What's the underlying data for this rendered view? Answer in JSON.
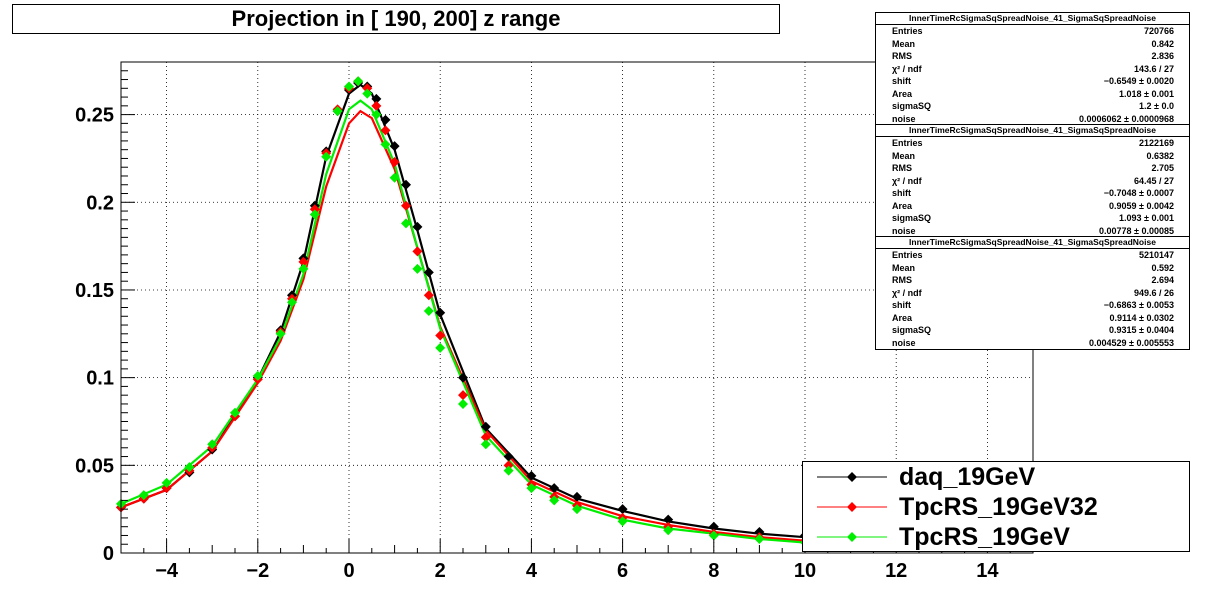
{
  "chart_data": {
    "type": "scatter",
    "title": "Projection in [ 190, 200] z range",
    "xlabel": "",
    "ylabel": "",
    "xlim": [
      -5,
      15
    ],
    "ylim": [
      0,
      0.28
    ],
    "x_ticks": [
      -4,
      -2,
      0,
      2,
      4,
      6,
      8,
      10,
      12,
      14
    ],
    "y_ticks": [
      0,
      0.05,
      0.1,
      0.15,
      0.2,
      0.25
    ],
    "x_tick_labels": [
      "−4",
      "−2",
      "0",
      "2",
      "4",
      "6",
      "8",
      "10",
      "12",
      "14"
    ],
    "y_tick_labels": [
      "0",
      "0.05",
      "0.1",
      "0.15",
      "0.2",
      "0.25"
    ],
    "grid": true,
    "legend_position": "bottom-right",
    "series": [
      {
        "name": "daq_19GeV",
        "color": "#000000",
        "marker": "diamond",
        "x": [
          -5,
          -4.5,
          -4,
          -3.5,
          -3,
          -2.5,
          -2,
          -1.5,
          -1.25,
          -1,
          -0.75,
          -0.5,
          -0.25,
          0,
          0.2,
          0.4,
          0.6,
          0.8,
          1,
          1.25,
          1.5,
          1.75,
          2,
          2.5,
          3,
          3.5,
          4,
          4.5,
          5,
          6,
          7,
          8,
          9,
          10
        ],
        "y": [
          0.026,
          0.031,
          0.037,
          0.046,
          0.059,
          0.078,
          0.1,
          0.127,
          0.147,
          0.168,
          0.198,
          0.229,
          0.252,
          0.264,
          0.268,
          0.266,
          0.259,
          0.247,
          0.232,
          0.21,
          0.186,
          0.16,
          0.137,
          0.1,
          0.072,
          0.055,
          0.044,
          0.037,
          0.032,
          0.025,
          0.019,
          0.015,
          0.012,
          0.01
        ]
      },
      {
        "name": "TpcRS_19GeV32",
        "color": "#ff0000",
        "marker": "diamond",
        "x": [
          -5,
          -4.5,
          -4,
          -3.5,
          -3,
          -2.5,
          -2,
          -1.5,
          -1.25,
          -1,
          -0.75,
          -0.5,
          -0.25,
          0,
          0.2,
          0.4,
          0.6,
          0.8,
          1,
          1.25,
          1.5,
          1.75,
          2,
          2.5,
          3,
          3.5,
          4,
          4.5,
          5,
          6,
          7,
          8,
          9,
          10
        ],
        "y": [
          0.026,
          0.031,
          0.037,
          0.047,
          0.06,
          0.078,
          0.099,
          0.126,
          0.145,
          0.166,
          0.196,
          0.228,
          0.253,
          0.265,
          0.269,
          0.265,
          0.255,
          0.241,
          0.223,
          0.198,
          0.172,
          0.147,
          0.124,
          0.09,
          0.066,
          0.05,
          0.039,
          0.032,
          0.027,
          0.02,
          0.015,
          0.011,
          0.009,
          0.007
        ]
      },
      {
        "name": "TpcRS_19GeV",
        "color": "#00ee00",
        "marker": "diamond",
        "x": [
          -5,
          -4.5,
          -4,
          -3.5,
          -3,
          -2.5,
          -2,
          -1.5,
          -1.25,
          -1,
          -0.75,
          -0.5,
          -0.25,
          0,
          0.2,
          0.4,
          0.6,
          0.8,
          1,
          1.25,
          1.5,
          1.75,
          2,
          2.5,
          3,
          3.5,
          4,
          4.5,
          5,
          6,
          7,
          8,
          9,
          10
        ],
        "y": [
          0.028,
          0.033,
          0.04,
          0.049,
          0.062,
          0.08,
          0.101,
          0.125,
          0.143,
          0.162,
          0.193,
          0.226,
          0.252,
          0.266,
          0.269,
          0.262,
          0.25,
          0.233,
          0.214,
          0.188,
          0.162,
          0.138,
          0.117,
          0.085,
          0.062,
          0.047,
          0.037,
          0.03,
          0.025,
          0.018,
          0.013,
          0.01,
          0.008,
          0.006
        ]
      }
    ],
    "fits": [
      {
        "name": "daq_19GeV",
        "color": "#000000",
        "x": [
          -5,
          -4,
          -3,
          -2,
          -1.5,
          -1,
          -0.5,
          0,
          0.25,
          0.5,
          1,
          1.5,
          2,
          3,
          4,
          5,
          6,
          7,
          8,
          9,
          10
        ],
        "y": [
          0.026,
          0.036,
          0.058,
          0.099,
          0.126,
          0.166,
          0.226,
          0.262,
          0.267,
          0.262,
          0.23,
          0.184,
          0.136,
          0.071,
          0.043,
          0.031,
          0.024,
          0.018,
          0.014,
          0.011,
          0.009
        ]
      },
      {
        "name": "TpcRS_19GeV32",
        "color": "#ff0000",
        "x": [
          -5,
          -4,
          -3,
          -2,
          -1.5,
          -1,
          -0.5,
          0,
          0.25,
          0.5,
          1,
          1.5,
          2,
          3,
          4,
          5,
          6,
          7,
          8,
          9,
          10
        ],
        "y": [
          0.026,
          0.036,
          0.058,
          0.097,
          0.121,
          0.156,
          0.209,
          0.245,
          0.252,
          0.248,
          0.219,
          0.174,
          0.129,
          0.07,
          0.041,
          0.029,
          0.021,
          0.016,
          0.012,
          0.009,
          0.007
        ]
      },
      {
        "name": "TpcRS_19GeV",
        "color": "#00ee00",
        "x": [
          -5,
          -4,
          -3,
          -2,
          -1.5,
          -1,
          -0.5,
          0,
          0.25,
          0.5,
          1,
          1.5,
          2,
          3,
          4,
          5,
          6,
          7,
          8,
          9,
          10
        ],
        "y": [
          0.028,
          0.039,
          0.061,
          0.099,
          0.123,
          0.159,
          0.216,
          0.253,
          0.258,
          0.253,
          0.222,
          0.174,
          0.128,
          0.067,
          0.039,
          0.027,
          0.019,
          0.014,
          0.011,
          0.008,
          0.006
        ]
      }
    ],
    "stat_boxes": [
      {
        "header": "InnerTimeRcSigmaSqSpreadNoise_41_SigmaSqSpreadNoise",
        "rows": [
          {
            "k": "Entries",
            "v": "720766"
          },
          {
            "k": "Mean",
            "v": "0.842"
          },
          {
            "k": "RMS",
            "v": "2.836"
          },
          {
            "k": "χ² / ndf",
            "v": "143.6 / 27"
          },
          {
            "k": "shift",
            "v": "−0.6549 ± 0.0020"
          },
          {
            "k": "Area",
            "v": "1.018 ± 0.001"
          },
          {
            "k": "sigmaSQ",
            "v": "1.2 ± 0.0"
          },
          {
            "k": "noise",
            "v": "0.0006062 ± 0.0000968"
          }
        ]
      },
      {
        "header": "InnerTimeRcSigmaSqSpreadNoise_41_SigmaSqSpreadNoise",
        "rows": [
          {
            "k": "Entries",
            "v": "2122169"
          },
          {
            "k": "Mean",
            "v": "0.6382"
          },
          {
            "k": "RMS",
            "v": "2.705"
          },
          {
            "k": "χ² / ndf",
            "v": "64.45 / 27"
          },
          {
            "k": "shift",
            "v": "−0.7048 ± 0.0007"
          },
          {
            "k": "Area",
            "v": "0.9059 ± 0.0042"
          },
          {
            "k": "sigmaSQ",
            "v": "1.093 ± 0.001"
          },
          {
            "k": "noise",
            "v": "0.00778 ± 0.00085"
          }
        ]
      },
      {
        "header": "InnerTimeRcSigmaSqSpreadNoise_41_SigmaSqSpreadNoise",
        "rows": [
          {
            "k": "Entries",
            "v": "5210147"
          },
          {
            "k": "Mean",
            "v": "0.592"
          },
          {
            "k": "RMS",
            "v": "2.694"
          },
          {
            "k": "χ² / ndf",
            "v": "949.6 / 26"
          },
          {
            "k": "shift",
            "v": "−0.6863 ± 0.0053"
          },
          {
            "k": "Area",
            "v": "0.9114 ± 0.0302"
          },
          {
            "k": "sigmaSQ",
            "v": "0.9315 ± 0.0404"
          },
          {
            "k": "noise",
            "v": "0.004529 ± 0.005553"
          }
        ]
      }
    ]
  }
}
